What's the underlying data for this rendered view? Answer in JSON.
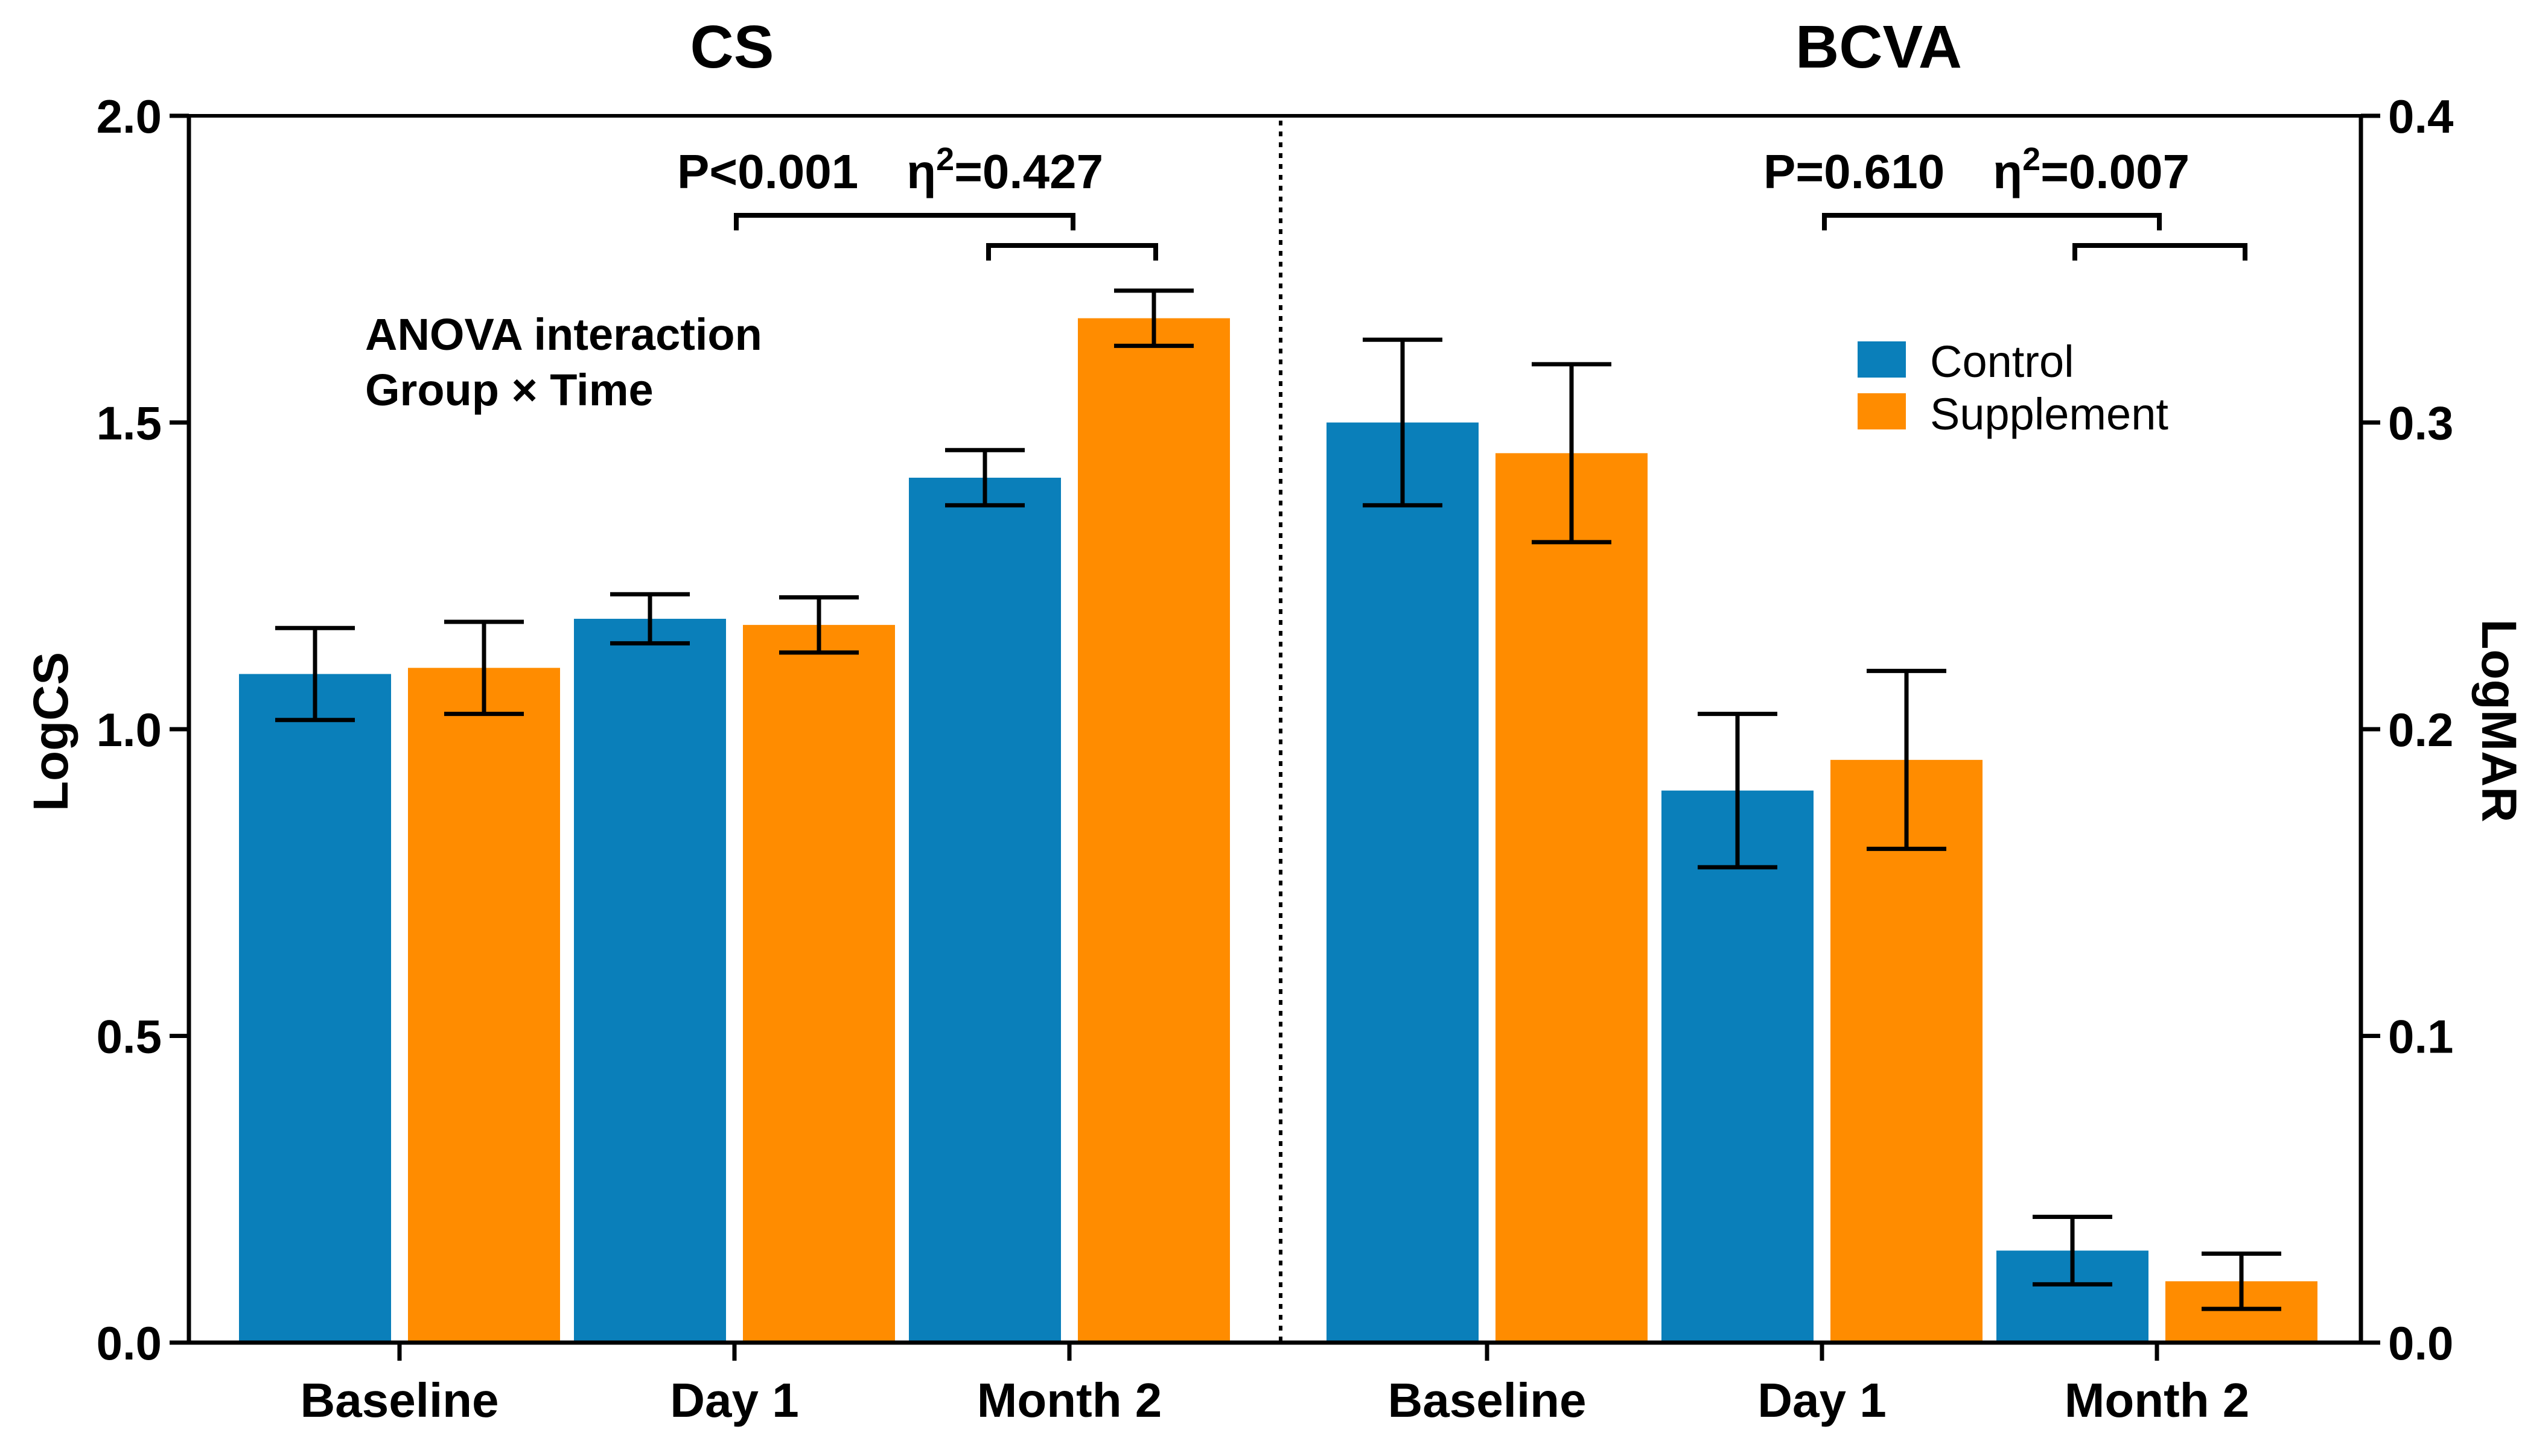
{
  "chart_data": [
    {
      "type": "bar",
      "title": "CS",
      "ylabel": "LogCS",
      "ylim": [
        0,
        2.0
      ],
      "yticks": [
        "0.0",
        "0.5",
        "1.0",
        "1.5",
        "2.0"
      ],
      "categories": [
        "Baseline",
        "Day 1",
        "Month 2"
      ],
      "series": [
        {
          "name": "Control",
          "values": [
            1.09,
            1.18,
            1.41
          ],
          "errors": [
            0.075,
            0.04,
            0.045
          ]
        },
        {
          "name": "Supplement",
          "values": [
            1.1,
            1.17,
            1.67
          ],
          "errors": [
            0.075,
            0.045,
            0.045
          ]
        }
      ],
      "stat_text": {
        "p": "P<0.001",
        "eta_base": "η",
        "eta_exp": "2",
        "eta_value": "=0.427"
      },
      "annotation": [
        "ANOVA interaction",
        "Group × Time"
      ]
    },
    {
      "type": "bar",
      "title": "BCVA",
      "ylabel": "LogMAR",
      "ylim": [
        0,
        0.4
      ],
      "yticks": [
        "0.0",
        "0.1",
        "0.2",
        "0.3",
        "0.4"
      ],
      "categories": [
        "Baseline",
        "Day 1",
        "Month 2"
      ],
      "series": [
        {
          "name": "Control",
          "values": [
            0.3,
            0.18,
            0.03
          ],
          "errors": [
            0.027,
            0.025,
            0.011
          ]
        },
        {
          "name": "Supplement",
          "values": [
            0.29,
            0.19,
            0.02
          ],
          "errors": [
            0.029,
            0.029,
            0.009
          ]
        }
      ],
      "stat_text": {
        "p": "P=0.610",
        "eta_base": "η",
        "eta_exp": "2",
        "eta_value": "=0.007"
      }
    }
  ],
  "legend": [
    {
      "label": "Control",
      "color": "#0a7fba"
    },
    {
      "label": "Supplement",
      "color": "#ff8c00"
    }
  ]
}
